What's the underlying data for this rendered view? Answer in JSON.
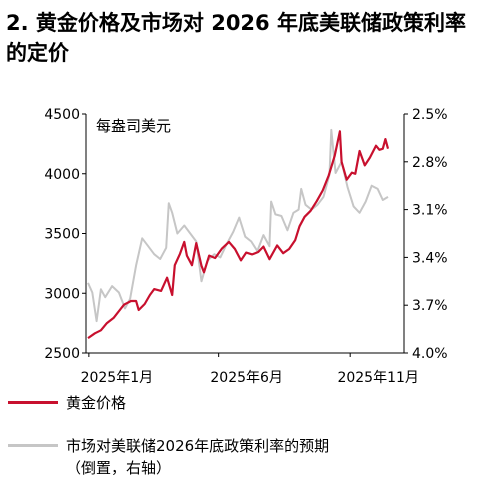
{
  "title": "2. 黄金价格及市场对 2026 年底美联储政策利率的定价",
  "chart_data": {
    "type": "line",
    "unit_label": "每盎司美元",
    "left_axis": {
      "ylim": [
        2500,
        4500
      ],
      "ticks": [
        "4500",
        "4000",
        "3500",
        "3000",
        "2500"
      ]
    },
    "right_axis": {
      "inverted": true,
      "ylim": [
        2.5,
        4.0
      ],
      "ticks": [
        "2.5%",
        "2.8%",
        "3.1%",
        "3.4%",
        "3.7%",
        "4.0%"
      ]
    },
    "x_ticks": [
      "2025年1月",
      "2025年6月",
      "2025年11月"
    ],
    "x_range": [
      "2024-12-31",
      "2025-12-15"
    ],
    "colors": {
      "gold": "#c8102e",
      "rates": "#c6c6c6",
      "axis": "#000000"
    },
    "series": [
      {
        "name": "黄金价格",
        "axis": "left",
        "points": [
          [
            "2024-12-31",
            2625
          ],
          [
            "2025-01-08",
            2665
          ],
          [
            "2025-01-15",
            2690
          ],
          [
            "2025-01-22",
            2750
          ],
          [
            "2025-01-30",
            2795
          ],
          [
            "2025-02-06",
            2860
          ],
          [
            "2025-02-11",
            2905
          ],
          [
            "2025-02-19",
            2935
          ],
          [
            "2025-02-25",
            2935
          ],
          [
            "2025-02-28",
            2860
          ],
          [
            "2025-03-07",
            2910
          ],
          [
            "2025-03-13",
            2985
          ],
          [
            "2025-03-18",
            3035
          ],
          [
            "2025-03-26",
            3020
          ],
          [
            "2025-04-02",
            3130
          ],
          [
            "2025-04-08",
            2985
          ],
          [
            "2025-04-11",
            3235
          ],
          [
            "2025-04-17",
            3330
          ],
          [
            "2025-04-22",
            3430
          ],
          [
            "2025-04-25",
            3315
          ],
          [
            "2025-05-01",
            3235
          ],
          [
            "2025-05-06",
            3420
          ],
          [
            "2025-05-12",
            3230
          ],
          [
            "2025-05-15",
            3175
          ],
          [
            "2025-05-21",
            3315
          ],
          [
            "2025-05-28",
            3295
          ],
          [
            "2025-06-05",
            3375
          ],
          [
            "2025-06-13",
            3430
          ],
          [
            "2025-06-20",
            3370
          ],
          [
            "2025-06-27",
            3275
          ],
          [
            "2025-07-03",
            3340
          ],
          [
            "2025-07-10",
            3325
          ],
          [
            "2025-07-17",
            3345
          ],
          [
            "2025-07-23",
            3390
          ],
          [
            "2025-07-30",
            3285
          ],
          [
            "2025-08-08",
            3400
          ],
          [
            "2025-08-15",
            3335
          ],
          [
            "2025-08-22",
            3370
          ],
          [
            "2025-08-29",
            3445
          ],
          [
            "2025-09-03",
            3560
          ],
          [
            "2025-09-09",
            3640
          ],
          [
            "2025-09-16",
            3690
          ],
          [
            "2025-09-23",
            3770
          ],
          [
            "2025-09-30",
            3860
          ],
          [
            "2025-10-07",
            3985
          ],
          [
            "2025-10-14",
            4150
          ],
          [
            "2025-10-20",
            4355
          ],
          [
            "2025-10-22",
            4100
          ],
          [
            "2025-10-28",
            3950
          ],
          [
            "2025-11-03",
            4010
          ],
          [
            "2025-11-07",
            4000
          ],
          [
            "2025-11-12",
            4190
          ],
          [
            "2025-11-18",
            4070
          ],
          [
            "2025-11-24",
            4135
          ],
          [
            "2025-12-01",
            4235
          ],
          [
            "2025-12-05",
            4200
          ],
          [
            "2025-12-09",
            4210
          ],
          [
            "2025-12-12",
            4290
          ],
          [
            "2025-12-15",
            4210
          ]
        ]
      },
      {
        "name": "市场对美联储2026年底政策利率的预期",
        "name_note": "（倒置，右轴）",
        "axis": "right",
        "points": [
          [
            "2024-12-31",
            3.56
          ],
          [
            "2025-01-05",
            3.62
          ],
          [
            "2025-01-10",
            3.8
          ],
          [
            "2025-01-15",
            3.6
          ],
          [
            "2025-01-20",
            3.65
          ],
          [
            "2025-01-28",
            3.58
          ],
          [
            "2025-02-05",
            3.62
          ],
          [
            "2025-02-12",
            3.72
          ],
          [
            "2025-02-18",
            3.66
          ],
          [
            "2025-02-25",
            3.45
          ],
          [
            "2025-03-04",
            3.28
          ],
          [
            "2025-03-11",
            3.33
          ],
          [
            "2025-03-18",
            3.38
          ],
          [
            "2025-03-25",
            3.41
          ],
          [
            "2025-04-01",
            3.34
          ],
          [
            "2025-04-04",
            3.06
          ],
          [
            "2025-04-08",
            3.12
          ],
          [
            "2025-04-14",
            3.25
          ],
          [
            "2025-04-22",
            3.2
          ],
          [
            "2025-04-29",
            3.25
          ],
          [
            "2025-05-06",
            3.3
          ],
          [
            "2025-05-12",
            3.55
          ],
          [
            "2025-05-19",
            3.42
          ],
          [
            "2025-05-27",
            3.38
          ],
          [
            "2025-06-03",
            3.4
          ],
          [
            "2025-06-10",
            3.32
          ],
          [
            "2025-06-18",
            3.24
          ],
          [
            "2025-06-25",
            3.15
          ],
          [
            "2025-07-02",
            3.27
          ],
          [
            "2025-07-09",
            3.3
          ],
          [
            "2025-07-16",
            3.36
          ],
          [
            "2025-07-23",
            3.26
          ],
          [
            "2025-07-30",
            3.33
          ],
          [
            "2025-08-01",
            3.05
          ],
          [
            "2025-08-06",
            3.13
          ],
          [
            "2025-08-13",
            3.14
          ],
          [
            "2025-08-20",
            3.23
          ],
          [
            "2025-08-27",
            3.12
          ],
          [
            "2025-09-02",
            3.1
          ],
          [
            "2025-09-05",
            2.97
          ],
          [
            "2025-09-10",
            3.07
          ],
          [
            "2025-09-17",
            3.1
          ],
          [
            "2025-09-24",
            3.07
          ],
          [
            "2025-10-01",
            3.02
          ],
          [
            "2025-10-08",
            2.88
          ],
          [
            "2025-10-10",
            2.6
          ],
          [
            "2025-10-15",
            2.87
          ],
          [
            "2025-10-22",
            2.8
          ],
          [
            "2025-10-29",
            2.96
          ],
          [
            "2025-11-05",
            3.08
          ],
          [
            "2025-11-12",
            3.12
          ],
          [
            "2025-11-19",
            3.05
          ],
          [
            "2025-11-26",
            2.95
          ],
          [
            "2025-12-03",
            2.97
          ],
          [
            "2025-12-09",
            3.04
          ],
          [
            "2025-12-15",
            3.02
          ]
        ]
      }
    ]
  }
}
